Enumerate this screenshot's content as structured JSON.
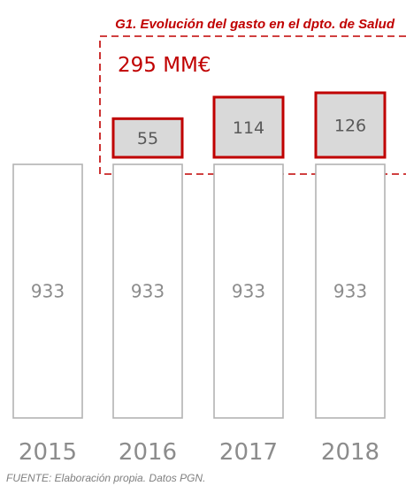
{
  "chart_data": {
    "type": "bar",
    "title": "G1. Evolución del gasto en el dpto. de Salud",
    "categories": [
      "2015",
      "2016",
      "2017",
      "2018"
    ],
    "series": [
      {
        "values": [
          933,
          933,
          933,
          933
        ]
      },
      {
        "values": [
          0,
          55,
          114,
          126
        ]
      }
    ],
    "highlight_total": "295 MM€",
    "source": "FUENTE: Elaboración propia. Datos PGN.",
    "colors": {
      "base_border": "#b3b3b3",
      "increment_fill": "#d9d9d9",
      "increment_border": "#c00000",
      "highlight_box": "#c00000",
      "title": "#c00000"
    }
  }
}
